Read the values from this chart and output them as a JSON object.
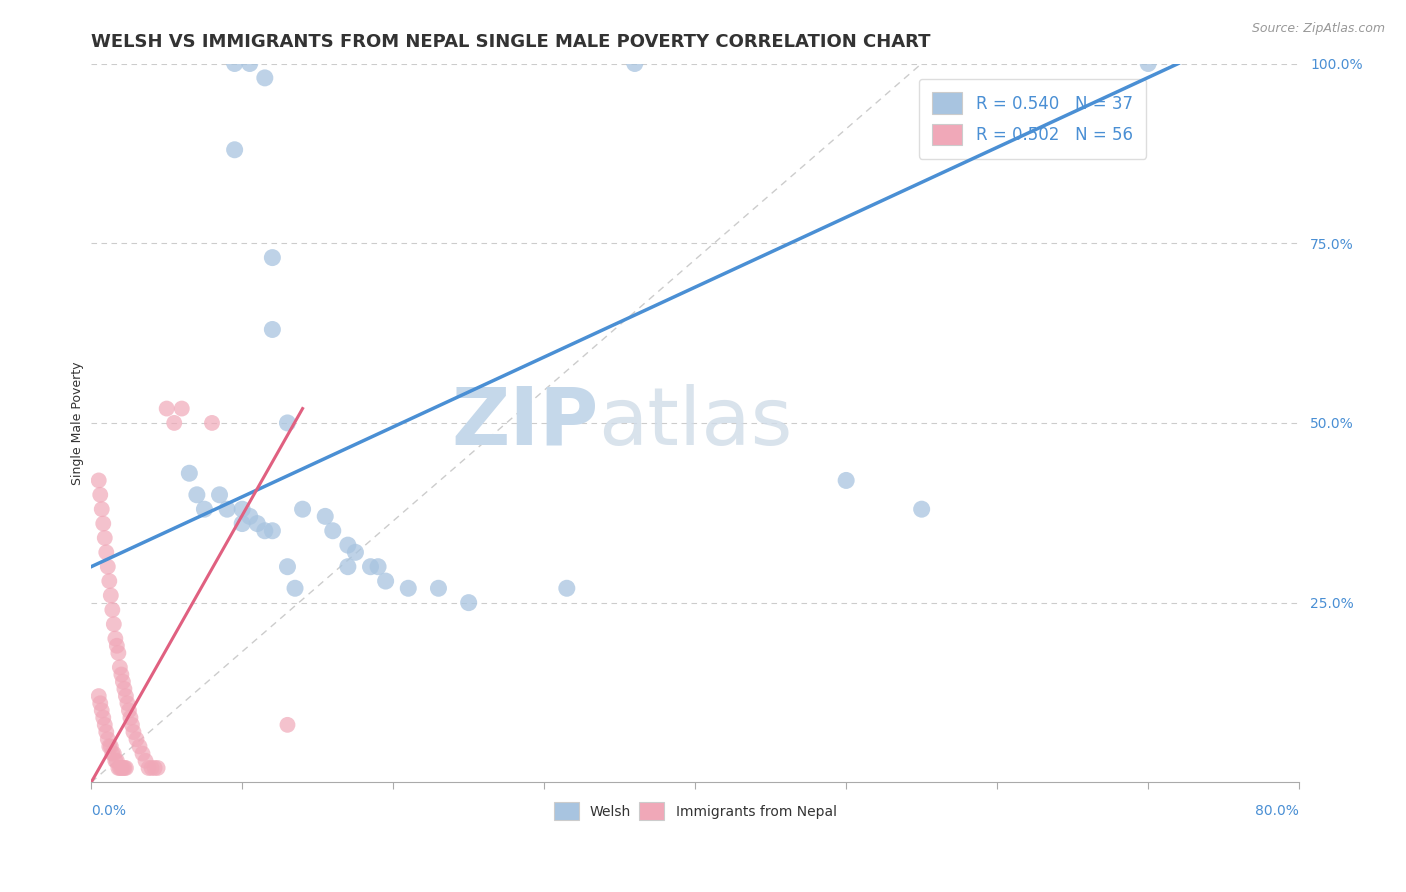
{
  "title": "WELSH VS IMMIGRANTS FROM NEPAL SINGLE MALE POVERTY CORRELATION CHART",
  "source": "Source: ZipAtlas.com",
  "ylabel": "Single Male Poverty",
  "welsh_R": 0.54,
  "welsh_N": 37,
  "nepal_R": 0.502,
  "nepal_N": 56,
  "welsh_color": "#a8c4e0",
  "nepal_color": "#f0a8b8",
  "welsh_line_color": "#4a8fd4",
  "nepal_line_color": "#e06080",
  "ref_line_color": "#cccccc",
  "watermark_zip": "ZIP",
  "watermark_atlas": "atlas",
  "watermark_color_zip": "#c5d8ea",
  "watermark_color_atlas": "#c5d8ea",
  "xmin": 0.0,
  "xmax": 0.8,
  "ymin": 0.0,
  "ymax": 1.0,
  "welsh_x": [
    0.095,
    0.105,
    0.115,
    0.36,
    0.095,
    0.12,
    0.12,
    0.13,
    0.065,
    0.07,
    0.075,
    0.085,
    0.09,
    0.1,
    0.1,
    0.105,
    0.11,
    0.115,
    0.12,
    0.13,
    0.14,
    0.155,
    0.16,
    0.17,
    0.175,
    0.185,
    0.17,
    0.19,
    0.195,
    0.21,
    0.23,
    0.25,
    0.135,
    0.315,
    0.7,
    0.5,
    0.55
  ],
  "welsh_y": [
    1.0,
    1.0,
    0.98,
    1.0,
    0.88,
    0.73,
    0.63,
    0.5,
    0.43,
    0.4,
    0.38,
    0.4,
    0.38,
    0.38,
    0.36,
    0.37,
    0.36,
    0.35,
    0.35,
    0.3,
    0.38,
    0.37,
    0.35,
    0.33,
    0.32,
    0.3,
    0.3,
    0.3,
    0.28,
    0.27,
    0.27,
    0.25,
    0.27,
    0.27,
    1.0,
    0.42,
    0.38
  ],
  "nepal_x": [
    0.005,
    0.006,
    0.007,
    0.008,
    0.009,
    0.01,
    0.011,
    0.012,
    0.013,
    0.014,
    0.015,
    0.016,
    0.017,
    0.018,
    0.019,
    0.02,
    0.021,
    0.022,
    0.023,
    0.024,
    0.025,
    0.026,
    0.027,
    0.028,
    0.03,
    0.032,
    0.034,
    0.036,
    0.038,
    0.04,
    0.042,
    0.044,
    0.005,
    0.006,
    0.007,
    0.008,
    0.009,
    0.01,
    0.011,
    0.012,
    0.013,
    0.014,
    0.015,
    0.016,
    0.017,
    0.018,
    0.019,
    0.02,
    0.021,
    0.022,
    0.023,
    0.05,
    0.055,
    0.06,
    0.08,
    0.13
  ],
  "nepal_y": [
    0.42,
    0.4,
    0.38,
    0.36,
    0.34,
    0.32,
    0.3,
    0.28,
    0.26,
    0.24,
    0.22,
    0.2,
    0.19,
    0.18,
    0.16,
    0.15,
    0.14,
    0.13,
    0.12,
    0.11,
    0.1,
    0.09,
    0.08,
    0.07,
    0.06,
    0.05,
    0.04,
    0.03,
    0.02,
    0.02,
    0.02,
    0.02,
    0.12,
    0.11,
    0.1,
    0.09,
    0.08,
    0.07,
    0.06,
    0.05,
    0.05,
    0.04,
    0.04,
    0.03,
    0.03,
    0.02,
    0.02,
    0.02,
    0.02,
    0.02,
    0.02,
    0.52,
    0.5,
    0.52,
    0.5,
    0.08
  ],
  "title_fontsize": 13,
  "axis_label_fontsize": 9,
  "tick_fontsize": 10,
  "legend_fontsize": 12,
  "source_fontsize": 9
}
